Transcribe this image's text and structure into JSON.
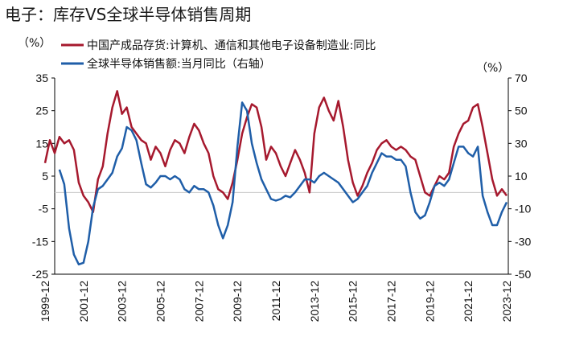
{
  "title": "电子：库存VS全球半导体销售周期",
  "chart_data": {
    "type": "line",
    "left_unit": "（%）",
    "right_unit": "（%）",
    "left_axis": {
      "min": -25,
      "max": 35,
      "ticks": [
        "35",
        "25",
        "15",
        "5",
        "-5",
        "-15",
        "-25"
      ]
    },
    "right_axis": {
      "min": -50,
      "max": 70,
      "ticks": [
        "70",
        "50",
        "30",
        "10",
        "-10",
        "-30",
        "-50"
      ]
    },
    "x_ticks": [
      "1999-12",
      "2001-12",
      "2003-12",
      "2005-12",
      "2007-12",
      "2009-12",
      "2011-12",
      "2013-12",
      "2015-12",
      "2017-12",
      "2019-12",
      "2021-12",
      "2023-12"
    ],
    "colors": {
      "inventory": "#a6192e",
      "semis": "#1f5ea8"
    },
    "series": [
      {
        "name": "中国产成品存货:计算机、通信和其他电子设备制造业:同比",
        "axis": "left",
        "points": [
          [
            "1999-12",
            9
          ],
          [
            "2000-03",
            16
          ],
          [
            "2000-06",
            12
          ],
          [
            "2000-09",
            17
          ],
          [
            "2000-12",
            15
          ],
          [
            "2001-03",
            16
          ],
          [
            "2001-06",
            13
          ],
          [
            "2001-09",
            3
          ],
          [
            "2001-12",
            -1
          ],
          [
            "2002-03",
            -3
          ],
          [
            "2002-06",
            -6
          ],
          [
            "2002-09",
            4
          ],
          [
            "2002-12",
            8
          ],
          [
            "2003-03",
            18
          ],
          [
            "2003-06",
            26
          ],
          [
            "2003-09",
            31
          ],
          [
            "2003-12",
            24
          ],
          [
            "2004-03",
            26
          ],
          [
            "2004-06",
            20
          ],
          [
            "2004-09",
            18
          ],
          [
            "2004-12",
            16
          ],
          [
            "2005-03",
            15
          ],
          [
            "2005-06",
            10
          ],
          [
            "2005-09",
            14
          ],
          [
            "2005-12",
            12
          ],
          [
            "2006-03",
            8
          ],
          [
            "2006-06",
            13
          ],
          [
            "2006-09",
            16
          ],
          [
            "2006-12",
            15
          ],
          [
            "2007-03",
            12
          ],
          [
            "2007-06",
            17
          ],
          [
            "2007-09",
            21
          ],
          [
            "2007-12",
            19
          ],
          [
            "2008-03",
            15
          ],
          [
            "2008-06",
            12
          ],
          [
            "2008-09",
            5
          ],
          [
            "2008-12",
            1
          ],
          [
            "2009-03",
            0
          ],
          [
            "2009-06",
            -2
          ],
          [
            "2009-09",
            3
          ],
          [
            "2009-12",
            10
          ],
          [
            "2010-03",
            18
          ],
          [
            "2010-06",
            23
          ],
          [
            "2010-09",
            27
          ],
          [
            "2010-12",
            26
          ],
          [
            "2011-03",
            20
          ],
          [
            "2011-06",
            10
          ],
          [
            "2011-09",
            14
          ],
          [
            "2011-12",
            12
          ],
          [
            "2012-03",
            8
          ],
          [
            "2012-06",
            5
          ],
          [
            "2012-09",
            9
          ],
          [
            "2012-12",
            13
          ],
          [
            "2013-03",
            10
          ],
          [
            "2013-06",
            6
          ],
          [
            "2013-09",
            0
          ],
          [
            "2013-12",
            18
          ],
          [
            "2014-03",
            26
          ],
          [
            "2014-06",
            29
          ],
          [
            "2014-09",
            25
          ],
          [
            "2014-12",
            22
          ],
          [
            "2015-03",
            28
          ],
          [
            "2015-06",
            20
          ],
          [
            "2015-09",
            10
          ],
          [
            "2015-12",
            3
          ],
          [
            "2016-03",
            -1
          ],
          [
            "2016-06",
            2
          ],
          [
            "2016-09",
            6
          ],
          [
            "2016-12",
            9
          ],
          [
            "2017-03",
            13
          ],
          [
            "2017-06",
            15
          ],
          [
            "2017-09",
            16
          ],
          [
            "2017-12",
            14
          ],
          [
            "2018-03",
            13
          ],
          [
            "2018-06",
            14
          ],
          [
            "2018-09",
            13
          ],
          [
            "2018-12",
            11
          ],
          [
            "2019-03",
            10
          ],
          [
            "2019-06",
            5
          ],
          [
            "2019-09",
            0
          ],
          [
            "2019-12",
            -1
          ],
          [
            "2020-03",
            2
          ],
          [
            "2020-06",
            5
          ],
          [
            "2020-09",
            4
          ],
          [
            "2020-12",
            6
          ],
          [
            "2021-03",
            14
          ],
          [
            "2021-06",
            18
          ],
          [
            "2021-09",
            21
          ],
          [
            "2021-12",
            22
          ],
          [
            "2022-03",
            26
          ],
          [
            "2022-06",
            27
          ],
          [
            "2022-09",
            20
          ],
          [
            "2022-12",
            12
          ],
          [
            "2023-03",
            4
          ],
          [
            "2023-06",
            -1
          ],
          [
            "2023-09",
            1
          ],
          [
            "2023-12",
            -1
          ]
        ]
      },
      {
        "name": "全球半导体销售额:当月同比（右轴）",
        "axis": "right",
        "points": [
          [
            "2000-09",
            14
          ],
          [
            "2000-12",
            5
          ],
          [
            "2001-03",
            -22
          ],
          [
            "2001-06",
            -38
          ],
          [
            "2001-09",
            -44
          ],
          [
            "2001-12",
            -43
          ],
          [
            "2002-03",
            -30
          ],
          [
            "2002-06",
            -9
          ],
          [
            "2002-09",
            2
          ],
          [
            "2002-12",
            4
          ],
          [
            "2003-03",
            8
          ],
          [
            "2003-06",
            12
          ],
          [
            "2003-09",
            22
          ],
          [
            "2003-12",
            27
          ],
          [
            "2004-03",
            40
          ],
          [
            "2004-06",
            38
          ],
          [
            "2004-09",
            32
          ],
          [
            "2004-12",
            18
          ],
          [
            "2005-03",
            5
          ],
          [
            "2005-06",
            3
          ],
          [
            "2005-09",
            6
          ],
          [
            "2005-12",
            10
          ],
          [
            "2006-03",
            10
          ],
          [
            "2006-06",
            8
          ],
          [
            "2006-09",
            10
          ],
          [
            "2006-12",
            8
          ],
          [
            "2007-03",
            2
          ],
          [
            "2007-06",
            0
          ],
          [
            "2007-09",
            4
          ],
          [
            "2007-12",
            2
          ],
          [
            "2008-03",
            2
          ],
          [
            "2008-06",
            0
          ],
          [
            "2008-09",
            -8
          ],
          [
            "2008-12",
            -20
          ],
          [
            "2009-03",
            -28
          ],
          [
            "2009-06",
            -20
          ],
          [
            "2009-09",
            -6
          ],
          [
            "2009-12",
            28
          ],
          [
            "2010-03",
            55
          ],
          [
            "2010-06",
            50
          ],
          [
            "2010-09",
            30
          ],
          [
            "2010-12",
            18
          ],
          [
            "2011-03",
            8
          ],
          [
            "2011-06",
            2
          ],
          [
            "2011-09",
            -4
          ],
          [
            "2011-12",
            -5
          ],
          [
            "2012-03",
            -4
          ],
          [
            "2012-06",
            -2
          ],
          [
            "2012-09",
            -3
          ],
          [
            "2012-12",
            0
          ],
          [
            "2013-03",
            4
          ],
          [
            "2013-06",
            8
          ],
          [
            "2013-09",
            8
          ],
          [
            "2013-12",
            6
          ],
          [
            "2014-03",
            10
          ],
          [
            "2014-06",
            12
          ],
          [
            "2014-09",
            10
          ],
          [
            "2014-12",
            8
          ],
          [
            "2015-03",
            6
          ],
          [
            "2015-06",
            2
          ],
          [
            "2015-09",
            -2
          ],
          [
            "2015-12",
            -6
          ],
          [
            "2016-03",
            -4
          ],
          [
            "2016-06",
            0
          ],
          [
            "2016-09",
            4
          ],
          [
            "2016-12",
            12
          ],
          [
            "2017-03",
            18
          ],
          [
            "2017-06",
            24
          ],
          [
            "2017-09",
            22
          ],
          [
            "2017-12",
            22
          ],
          [
            "2018-03",
            20
          ],
          [
            "2018-06",
            20
          ],
          [
            "2018-09",
            16
          ],
          [
            "2018-12",
            0
          ],
          [
            "2019-03",
            -12
          ],
          [
            "2019-06",
            -16
          ],
          [
            "2019-09",
            -14
          ],
          [
            "2019-12",
            -6
          ],
          [
            "2020-03",
            4
          ],
          [
            "2020-06",
            6
          ],
          [
            "2020-09",
            4
          ],
          [
            "2020-12",
            8
          ],
          [
            "2021-03",
            18
          ],
          [
            "2021-06",
            28
          ],
          [
            "2021-09",
            28
          ],
          [
            "2021-12",
            24
          ],
          [
            "2022-03",
            22
          ],
          [
            "2022-06",
            28
          ],
          [
            "2022-09",
            -2
          ],
          [
            "2022-12",
            -12
          ],
          [
            "2023-03",
            -20
          ],
          [
            "2023-06",
            -20
          ],
          [
            "2023-09",
            -12
          ],
          [
            "2023-12",
            -6
          ]
        ]
      }
    ]
  }
}
